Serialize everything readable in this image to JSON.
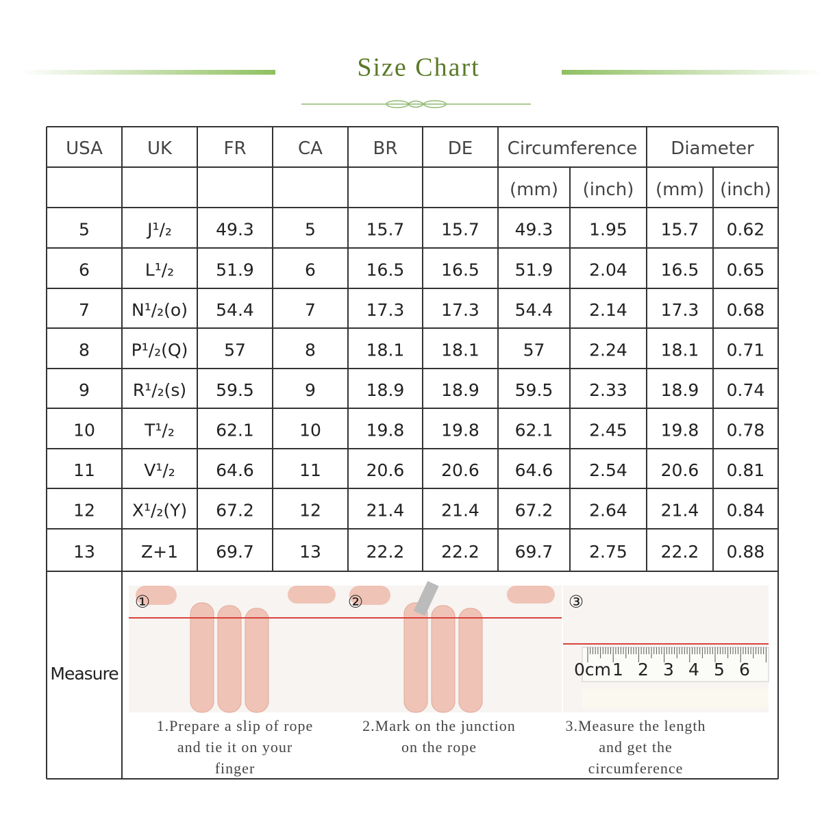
{
  "header": {
    "title": "Size Chart"
  },
  "table": {
    "columns": [
      "USA",
      "UK",
      "FR",
      "CA",
      "BR",
      "DE",
      "Circumference",
      "Diameter"
    ],
    "units": [
      "(mm)",
      "(inch)",
      "(mm)",
      "(inch)"
    ],
    "rows": [
      [
        "5",
        "J¹/₂",
        "49.3",
        "5",
        "15.7",
        "15.7",
        "49.3",
        "1.95",
        "15.7",
        "0.62"
      ],
      [
        "6",
        "L¹/₂",
        "51.9",
        "6",
        "16.5",
        "16.5",
        "51.9",
        "2.04",
        "16.5",
        "0.65"
      ],
      [
        "7",
        "N¹/₂(o)",
        "54.4",
        "7",
        "17.3",
        "17.3",
        "54.4",
        "2.14",
        "17.3",
        "0.68"
      ],
      [
        "8",
        "P¹/₂(Q)",
        "57",
        "8",
        "18.1",
        "18.1",
        "57",
        "2.24",
        "18.1",
        "0.71"
      ],
      [
        "9",
        "R¹/₂(s)",
        "59.5",
        "9",
        "18.9",
        "18.9",
        "59.5",
        "2.33",
        "18.9",
        "0.74"
      ],
      [
        "10",
        "T¹/₂",
        "62.1",
        "10",
        "19.8",
        "19.8",
        "62.1",
        "2.45",
        "19.8",
        "0.78"
      ],
      [
        "11",
        "V¹/₂",
        "64.6",
        "11",
        "20.6",
        "20.6",
        "64.6",
        "2.54",
        "20.6",
        "0.81"
      ],
      [
        "12",
        "X¹/₂(Y)",
        "67.2",
        "12",
        "21.4",
        "21.4",
        "67.2",
        "2.64",
        "21.4",
        "0.84"
      ],
      [
        "13",
        "Z+1",
        "69.7",
        "13",
        "22.2",
        "22.2",
        "69.7",
        "2.75",
        "22.2",
        "0.88"
      ]
    ]
  },
  "measure": {
    "label": "Measure",
    "steps": [
      {
        "number": "①",
        "lines": [
          "1.Prepare a slip of rope",
          "and tie it on your",
          "finger"
        ]
      },
      {
        "number": "②",
        "lines": [
          "2.Mark on the junction",
          "on the rope"
        ]
      },
      {
        "number": "③",
        "lines": [
          "3.Measure the length",
          "and get the",
          "circumference"
        ]
      }
    ],
    "ruler_labels": [
      "0cm",
      "1",
      "2",
      "3",
      "4",
      "5",
      "6"
    ]
  }
}
